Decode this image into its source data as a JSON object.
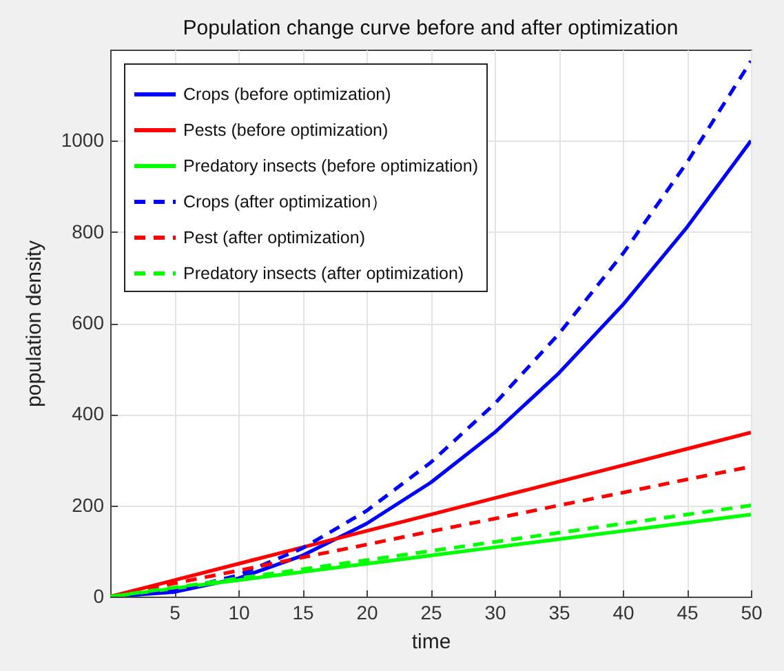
{
  "chart_data": {
    "type": "line",
    "title": "Population change curve before and after optimization",
    "xlabel": "time",
    "ylabel": "population density",
    "x": [
      0,
      5,
      10,
      15,
      20,
      25,
      30,
      35,
      40,
      45,
      50
    ],
    "series": [
      {
        "name": "Crops (before optimization)",
        "color": "#0000ff",
        "line_style": "solid",
        "values": [
          0,
          10,
          40,
          90,
          160,
          250,
          360,
          490,
          640,
          810,
          1000
        ]
      },
      {
        "name": "Pests (before optimization)",
        "color": "#ff0000",
        "line_style": "solid",
        "values": [
          0,
          36,
          72,
          108,
          144,
          180,
          216,
          252,
          288,
          324,
          360
        ]
      },
      {
        "name": "Predatory insects (before optimization)",
        "color": "#00ff00",
        "line_style": "solid",
        "values": [
          0,
          18,
          36,
          54,
          72,
          90,
          108,
          126,
          144,
          162,
          180
        ]
      },
      {
        "name": "Crops (after optimization）",
        "color": "#0000ff",
        "line_style": "dashed",
        "values": [
          0,
          12,
          47,
          106,
          188,
          294,
          423,
          576,
          752,
          952,
          1175
        ]
      },
      {
        "name": "Pest (after optimization)",
        "color": "#ff0000",
        "line_style": "dashed",
        "values": [
          0,
          29,
          57,
          86,
          114,
          143,
          171,
          200,
          228,
          257,
          285
        ]
      },
      {
        "name": "Predatory insects (after optimization)",
        "color": "#00ff00",
        "line_style": "dashed",
        "values": [
          0,
          20,
          40,
          60,
          80,
          100,
          120,
          140,
          160,
          180,
          200
        ]
      }
    ],
    "xlim": [
      0,
      50
    ],
    "xticks": [
      5,
      10,
      15,
      20,
      25,
      30,
      35,
      40,
      45,
      50
    ],
    "ylim": [
      0,
      1200
    ],
    "yticks": [
      0,
      200,
      400,
      600,
      800,
      1000
    ],
    "grid": true,
    "legend": "top left",
    "marker": "none"
  }
}
